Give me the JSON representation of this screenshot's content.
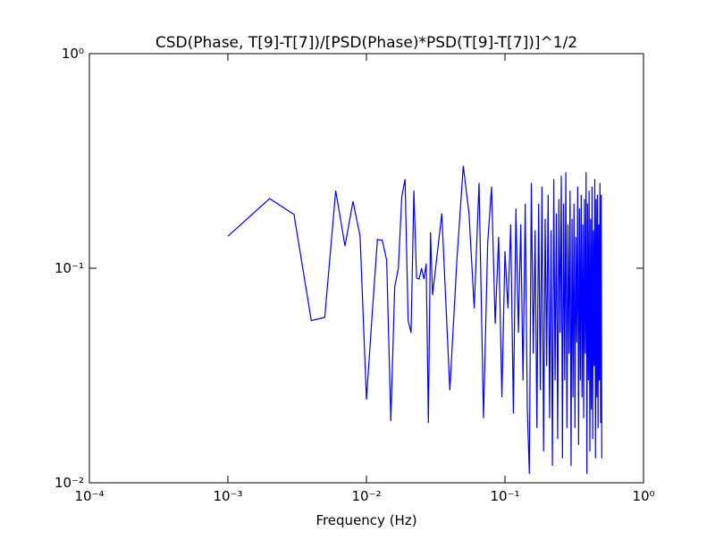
{
  "chart_data": {
    "type": "line",
    "title": "CSD(Phase, T[9]-T[7])/[PSD(Phase)*PSD(T[9]-T[7])]^1/2",
    "x_label": "Frequency (Hz)",
    "log_x": true,
    "log_y": true,
    "xlim": [
      0.0001,
      1
    ],
    "ylim": [
      0.01,
      1
    ],
    "xticks": [
      {
        "value": 0.0001,
        "label": "10⁻⁴"
      },
      {
        "value": 0.001,
        "label": "10⁻³"
      },
      {
        "value": 0.01,
        "label": "10⁻²"
      },
      {
        "value": 0.1,
        "label": "10⁻¹"
      },
      {
        "value": 1,
        "label": "10⁰"
      }
    ],
    "yticks": [
      {
        "value": 0.01,
        "label": "10⁻²"
      },
      {
        "value": 0.1,
        "label": "10⁻¹"
      },
      {
        "value": 1,
        "label": "10⁰"
      }
    ],
    "series": [
      {
        "color": "#0000ff",
        "x": [
          0.001,
          0.002,
          0.003,
          0.004,
          0.005,
          0.006,
          0.007,
          0.008,
          0.009,
          0.01,
          0.011,
          0.012,
          0.013,
          0.014,
          0.015,
          0.016,
          0.017,
          0.018,
          0.019,
          0.02,
          0.021,
          0.022,
          0.023,
          0.024,
          0.025,
          0.026,
          0.027,
          0.028,
          0.029,
          0.03,
          0.035,
          0.04,
          0.045,
          0.05,
          0.055,
          0.06,
          0.065,
          0.07,
          0.075,
          0.08,
          0.085,
          0.09,
          0.095,
          0.1,
          0.105,
          0.11,
          0.115,
          0.12,
          0.125,
          0.13,
          0.135,
          0.14,
          0.145,
          0.15,
          0.155,
          0.16,
          0.165,
          0.17,
          0.175,
          0.18,
          0.185,
          0.19,
          0.195,
          0.2,
          0.205,
          0.21,
          0.215,
          0.22,
          0.225,
          0.23,
          0.235,
          0.24,
          0.245,
          0.25,
          0.255,
          0.26,
          0.265,
          0.27,
          0.275,
          0.28,
          0.285,
          0.29,
          0.295,
          0.3,
          0.305,
          0.31,
          0.315,
          0.32,
          0.325,
          0.33,
          0.335,
          0.34,
          0.345,
          0.35,
          0.355,
          0.36,
          0.365,
          0.37,
          0.375,
          0.38,
          0.385,
          0.39,
          0.395,
          0.4,
          0.405,
          0.41,
          0.415,
          0.42,
          0.425,
          0.43,
          0.435,
          0.44,
          0.445,
          0.45,
          0.455,
          0.46,
          0.465,
          0.47,
          0.475,
          0.48,
          0.485,
          0.49,
          0.495,
          0.5
        ],
        "values": [
          0.141,
          0.211,
          0.178,
          0.057,
          0.059,
          0.23,
          0.127,
          0.205,
          0.141,
          0.0244,
          0.061,
          0.136,
          0.135,
          0.109,
          0.0194,
          0.082,
          0.1,
          0.216,
          0.26,
          0.057,
          0.05,
          0.23,
          0.09,
          0.089,
          0.1,
          0.089,
          0.105,
          0.019,
          0.147,
          0.075,
          0.18,
          0.027,
          0.11,
          0.3,
          0.18,
          0.065,
          0.25,
          0.02,
          0.13,
          0.24,
          0.055,
          0.14,
          0.025,
          0.12,
          0.065,
          0.16,
          0.021,
          0.19,
          0.05,
          0.16,
          0.03,
          0.2,
          0.022,
          0.011,
          0.25,
          0.04,
          0.15,
          0.018,
          0.2,
          0.027,
          0.24,
          0.014,
          0.17,
          0.035,
          0.22,
          0.02,
          0.15,
          0.012,
          0.26,
          0.03,
          0.18,
          0.016,
          0.21,
          0.05,
          0.27,
          0.013,
          0.2,
          0.03,
          0.28,
          0.018,
          0.16,
          0.04,
          0.23,
          0.012,
          0.17,
          0.025,
          0.2,
          0.018,
          0.14,
          0.045,
          0.24,
          0.015,
          0.19,
          0.03,
          0.22,
          0.025,
          0.16,
          0.02,
          0.21,
          0.04,
          0.28,
          0.011,
          0.2,
          0.03,
          0.23,
          0.014,
          0.17,
          0.022,
          0.24,
          0.016,
          0.15,
          0.035,
          0.26,
          0.013,
          0.21,
          0.025,
          0.22,
          0.018,
          0.16,
          0.03,
          0.25,
          0.019,
          0.22,
          0.013
        ]
      }
    ]
  }
}
